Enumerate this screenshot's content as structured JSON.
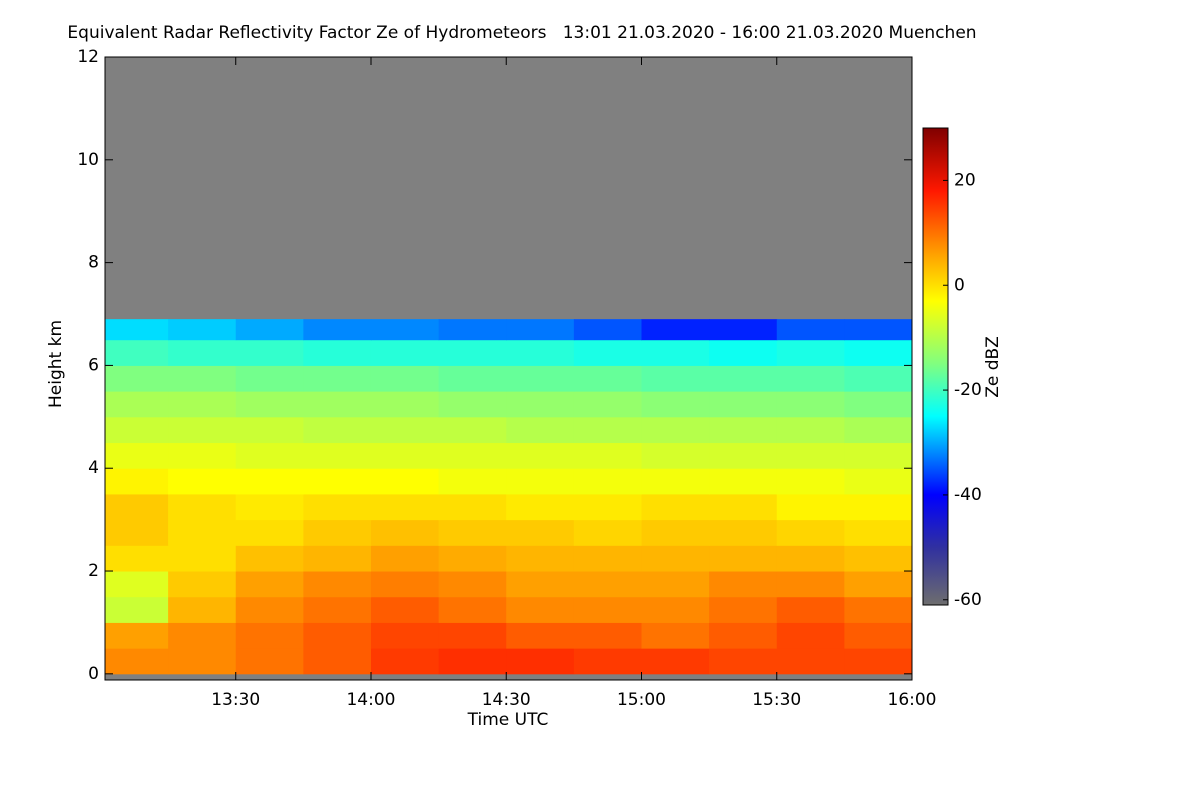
{
  "chart_data": {
    "type": "heatmap",
    "title": "Equivalent Radar Reflectivity Factor Ze of Hydrometeors   13:01 21.03.2020 - 16:00 21.03.2020 Muenchen",
    "xlabel": "Time UTC",
    "ylabel": "Height km",
    "colorbar_label": "Ze dBZ",
    "xlim": [
      13.0167,
      16.0
    ],
    "xticks": [
      {
        "value": 13.5,
        "label": "13:30"
      },
      {
        "value": 14.0,
        "label": "14:00"
      },
      {
        "value": 14.5,
        "label": "14:30"
      },
      {
        "value": 15.0,
        "label": "15:00"
      },
      {
        "value": 15.5,
        "label": "15:30"
      },
      {
        "value": 16.0,
        "label": "16:00"
      }
    ],
    "ylim": [
      -0.12,
      12
    ],
    "yticks": [
      0,
      2,
      4,
      6,
      8,
      10,
      12
    ],
    "clim": [
      -61,
      30
    ],
    "cticks": [
      -60,
      -40,
      -20,
      0,
      20
    ],
    "background_color": "#808080",
    "colorscale": [
      {
        "value": -61,
        "color": "#6e6e6e"
      },
      {
        "value": -50,
        "color": "#3030a0"
      },
      {
        "value": -40,
        "color": "#0000ff"
      },
      {
        "value": -25,
        "color": "#00ffff"
      },
      {
        "value": -15,
        "color": "#80ff80"
      },
      {
        "value": -3,
        "color": "#ffff00"
      },
      {
        "value": 6,
        "color": "#ffa000"
      },
      {
        "value": 18,
        "color": "#ff1800"
      },
      {
        "value": 30,
        "color": "#800000"
      }
    ],
    "xbins": [
      13.0167,
      13.25,
      13.5,
      13.75,
      14.0,
      14.25,
      14.5,
      14.75,
      15.0,
      15.25,
      15.5,
      15.75,
      16.0
    ],
    "ybins": [
      0,
      0.5,
      1,
      1.5,
      2,
      2.5,
      3,
      3.5,
      4,
      4.5,
      5,
      5.5,
      6,
      6.5,
      6.9
    ],
    "z": [
      [
        8,
        8,
        10,
        12,
        15,
        16,
        16,
        15,
        15,
        14,
        14,
        14
      ],
      [
        6,
        8,
        10,
        12,
        14,
        14,
        12,
        12,
        10,
        12,
        14,
        12
      ],
      [
        -8,
        4,
        8,
        10,
        12,
        10,
        8,
        8,
        8,
        10,
        12,
        10
      ],
      [
        -6,
        2,
        6,
        8,
        9,
        8,
        6,
        6,
        6,
        8,
        8,
        6
      ],
      [
        0,
        0,
        3,
        4,
        6,
        5,
        4,
        4,
        4,
        4,
        4,
        3
      ],
      [
        2,
        0,
        0,
        2,
        3,
        2,
        2,
        1,
        2,
        2,
        1,
        0
      ],
      [
        2,
        0,
        -1,
        0,
        0,
        0,
        -1,
        -1,
        0,
        0,
        -2,
        -2
      ],
      [
        -2,
        -3,
        -3,
        -3,
        -3,
        -4,
        -4,
        -4,
        -4,
        -4,
        -4,
        -5
      ],
      [
        -5,
        -5,
        -6,
        -6,
        -6,
        -6,
        -6,
        -6,
        -7,
        -7,
        -7,
        -7
      ],
      [
        -8,
        -8,
        -8,
        -9,
        -9,
        -9,
        -10,
        -10,
        -10,
        -10,
        -10,
        -11
      ],
      [
        -11,
        -11,
        -12,
        -12,
        -12,
        -13,
        -13,
        -13,
        -14,
        -14,
        -14,
        -15
      ],
      [
        -15,
        -15,
        -16,
        -16,
        -16,
        -17,
        -17,
        -17,
        -18,
        -18,
        -18,
        -19
      ],
      [
        -20,
        -21,
        -21,
        -22,
        -22,
        -22,
        -22,
        -23,
        -23,
        -24,
        -23,
        -24
      ],
      [
        -27,
        -28,
        -30,
        -32,
        -32,
        -33,
        -33,
        -35,
        -38,
        -38,
        -35,
        -35
      ]
    ]
  }
}
